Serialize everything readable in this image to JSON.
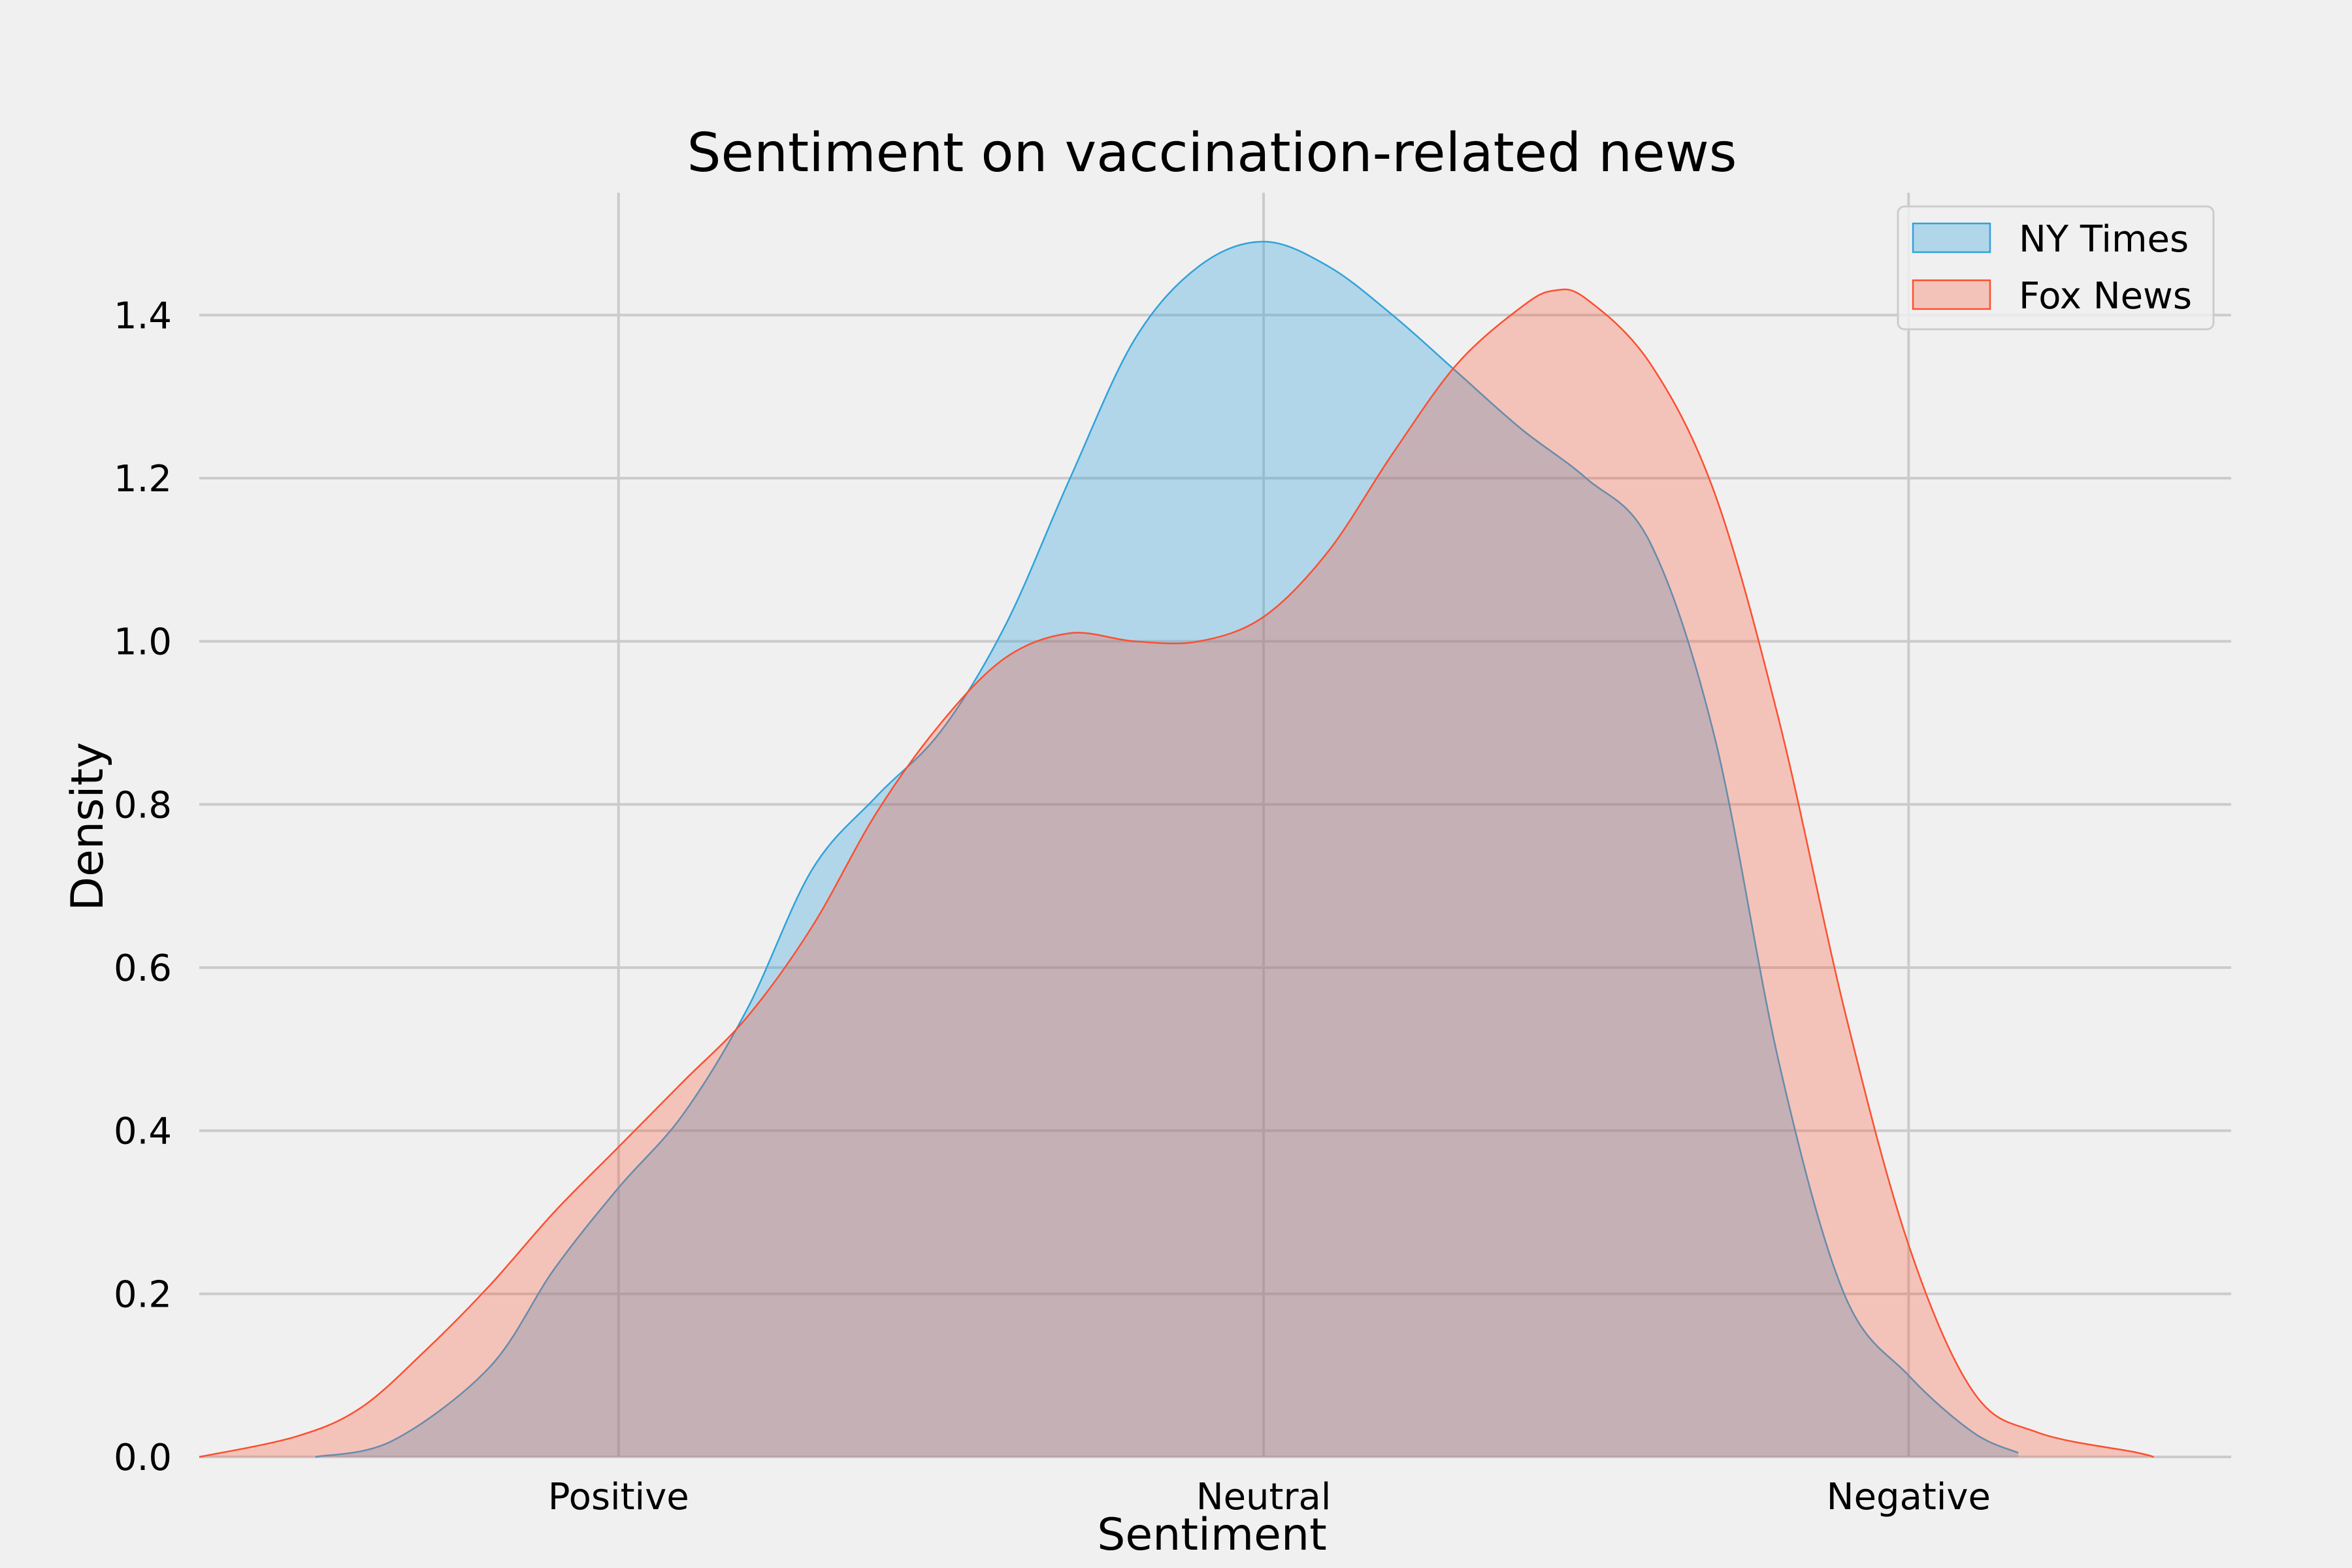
{
  "chart_data": {
    "type": "area",
    "title": "Sentiment on vaccination-related news",
    "xlabel": "Sentiment",
    "ylabel": "Density",
    "xlim": [
      -1.65,
      1.5
    ],
    "ylim": [
      0,
      1.55
    ],
    "x_ticks": [
      {
        "value": -1,
        "label": "Positive"
      },
      {
        "value": 0,
        "label": "Neutral"
      },
      {
        "value": 1,
        "label": "Negative"
      }
    ],
    "y_ticks": [
      0.0,
      0.2,
      0.4,
      0.6,
      0.8,
      1.0,
      1.2,
      1.4
    ],
    "y_tick_labels": [
      "0.0",
      "0.2",
      "0.4",
      "0.6",
      "0.8",
      "1.0",
      "1.2",
      "1.4"
    ],
    "grid": true,
    "legend_position": "top-right",
    "series": [
      {
        "name": "NY Times",
        "fill_color": "#30a2da",
        "line_color": "#30a2da",
        "fill_opacity": 0.33,
        "points": [
          [
            -1.47,
            0.0
          ],
          [
            -1.35,
            0.02
          ],
          [
            -1.2,
            0.11
          ],
          [
            -1.1,
            0.23
          ],
          [
            -1.0,
            0.33
          ],
          [
            -0.9,
            0.42
          ],
          [
            -0.8,
            0.55
          ],
          [
            -0.7,
            0.72
          ],
          [
            -0.6,
            0.81
          ],
          [
            -0.5,
            0.89
          ],
          [
            -0.4,
            1.02
          ],
          [
            -0.3,
            1.2
          ],
          [
            -0.2,
            1.37
          ],
          [
            -0.1,
            1.46
          ],
          [
            0.0,
            1.49
          ],
          [
            0.1,
            1.46
          ],
          [
            0.2,
            1.4
          ],
          [
            0.3,
            1.33
          ],
          [
            0.4,
            1.26
          ],
          [
            0.5,
            1.2
          ],
          [
            0.6,
            1.12
          ],
          [
            0.7,
            0.88
          ],
          [
            0.8,
            0.48
          ],
          [
            0.9,
            0.2
          ],
          [
            1.0,
            0.1
          ],
          [
            1.1,
            0.03
          ],
          [
            1.17,
            0.005
          ]
        ]
      },
      {
        "name": "Fox News",
        "fill_color": "#fc4f30",
        "line_color": "#fc4f30",
        "fill_opacity": 0.28,
        "points": [
          [
            -1.65,
            0.0
          ],
          [
            -1.5,
            0.025
          ],
          [
            -1.4,
            0.06
          ],
          [
            -1.3,
            0.13
          ],
          [
            -1.2,
            0.21
          ],
          [
            -1.1,
            0.3
          ],
          [
            -1.0,
            0.38
          ],
          [
            -0.9,
            0.46
          ],
          [
            -0.8,
            0.54
          ],
          [
            -0.7,
            0.65
          ],
          [
            -0.6,
            0.79
          ],
          [
            -0.5,
            0.9
          ],
          [
            -0.4,
            0.98
          ],
          [
            -0.3,
            1.01
          ],
          [
            -0.2,
            1.0
          ],
          [
            -0.1,
            1.0
          ],
          [
            0.0,
            1.03
          ],
          [
            0.1,
            1.11
          ],
          [
            0.2,
            1.23
          ],
          [
            0.3,
            1.34
          ],
          [
            0.4,
            1.41
          ],
          [
            0.45,
            1.43
          ],
          [
            0.5,
            1.42
          ],
          [
            0.6,
            1.34
          ],
          [
            0.7,
            1.18
          ],
          [
            0.8,
            0.9
          ],
          [
            0.9,
            0.55
          ],
          [
            1.0,
            0.26
          ],
          [
            1.1,
            0.08
          ],
          [
            1.2,
            0.03
          ],
          [
            1.35,
            0.006
          ],
          [
            1.38,
            0.0
          ]
        ]
      }
    ]
  }
}
